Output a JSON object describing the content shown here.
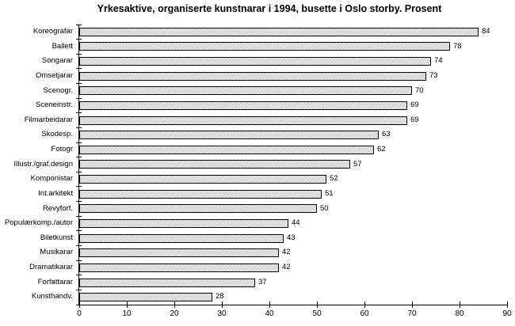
{
  "chart_data": {
    "type": "bar",
    "orientation": "horizontal",
    "title": "Yrkesaktive, organiserte kunstnarar i 1994, busette i Oslo storby. Prosent",
    "categories": [
      "Koreografar",
      "Ballett",
      "Songarar",
      "Omsetjarar",
      "Scenogr.",
      "Sceneinstr.",
      "Filmarbeidarar",
      "Skodesp.",
      "Fotogr",
      "Illustr./graf.design",
      "Komponistar",
      "Int.arkitekt",
      "Revyforf.",
      "Populærkomp./autor",
      "Biletkunst",
      "Musikarar",
      "Dramatikarar",
      "Forfattarar",
      "Kunsthandv."
    ],
    "values": [
      84,
      78,
      74,
      73,
      70,
      69,
      69,
      63,
      62,
      57,
      52,
      51,
      50,
      44,
      43,
      42,
      42,
      37,
      28
    ],
    "value_labels": true,
    "xlabel": "",
    "ylabel": "",
    "xlim": [
      0,
      90
    ],
    "x_ticks": [
      0,
      10,
      20,
      30,
      40,
      50,
      60,
      70,
      80,
      90
    ],
    "grid": false,
    "legend": null,
    "colors": {
      "bar_fill": "#dbdbdb",
      "bar_border": "#000000",
      "axis": "#000000",
      "text": "#000000",
      "background": "#ffffff"
    }
  }
}
